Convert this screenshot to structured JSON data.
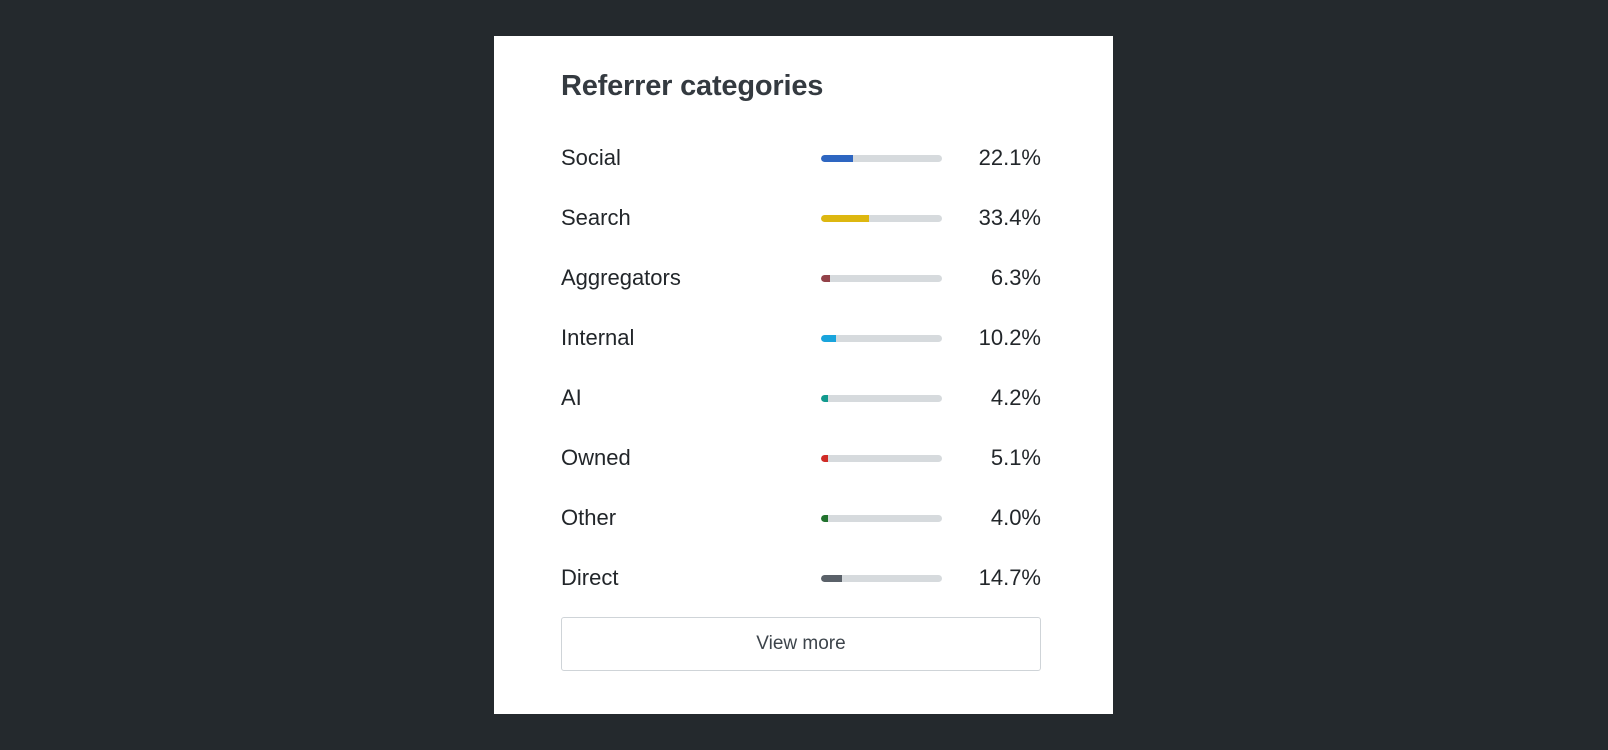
{
  "card": {
    "title": "Referrer categories",
    "rows": [
      {
        "label": "Social",
        "value_text": "22.1%",
        "share": 0.221,
        "color": "#2e66c1"
      },
      {
        "label": "Search",
        "value_text": "33.4%",
        "share": 0.334,
        "color": "#ddb710"
      },
      {
        "label": "Aggregators",
        "value_text": "6.3%",
        "share": 0.063,
        "color": "#934249"
      },
      {
        "label": "Internal",
        "value_text": "10.2%",
        "share": 0.102,
        "color": "#19a4dc"
      },
      {
        "label": "AI",
        "value_text": "4.2%",
        "share": 0.042,
        "color": "#119a8e"
      },
      {
        "label": "Owned",
        "value_text": "5.1%",
        "share": 0.051,
        "color": "#d02b26"
      },
      {
        "label": "Other",
        "value_text": "4.0%",
        "share": 0.04,
        "color": "#21722d"
      },
      {
        "label": "Direct",
        "value_text": "14.7%",
        "share": 0.147,
        "color": "#5a6169"
      }
    ],
    "view_more_label": "View more"
  }
}
